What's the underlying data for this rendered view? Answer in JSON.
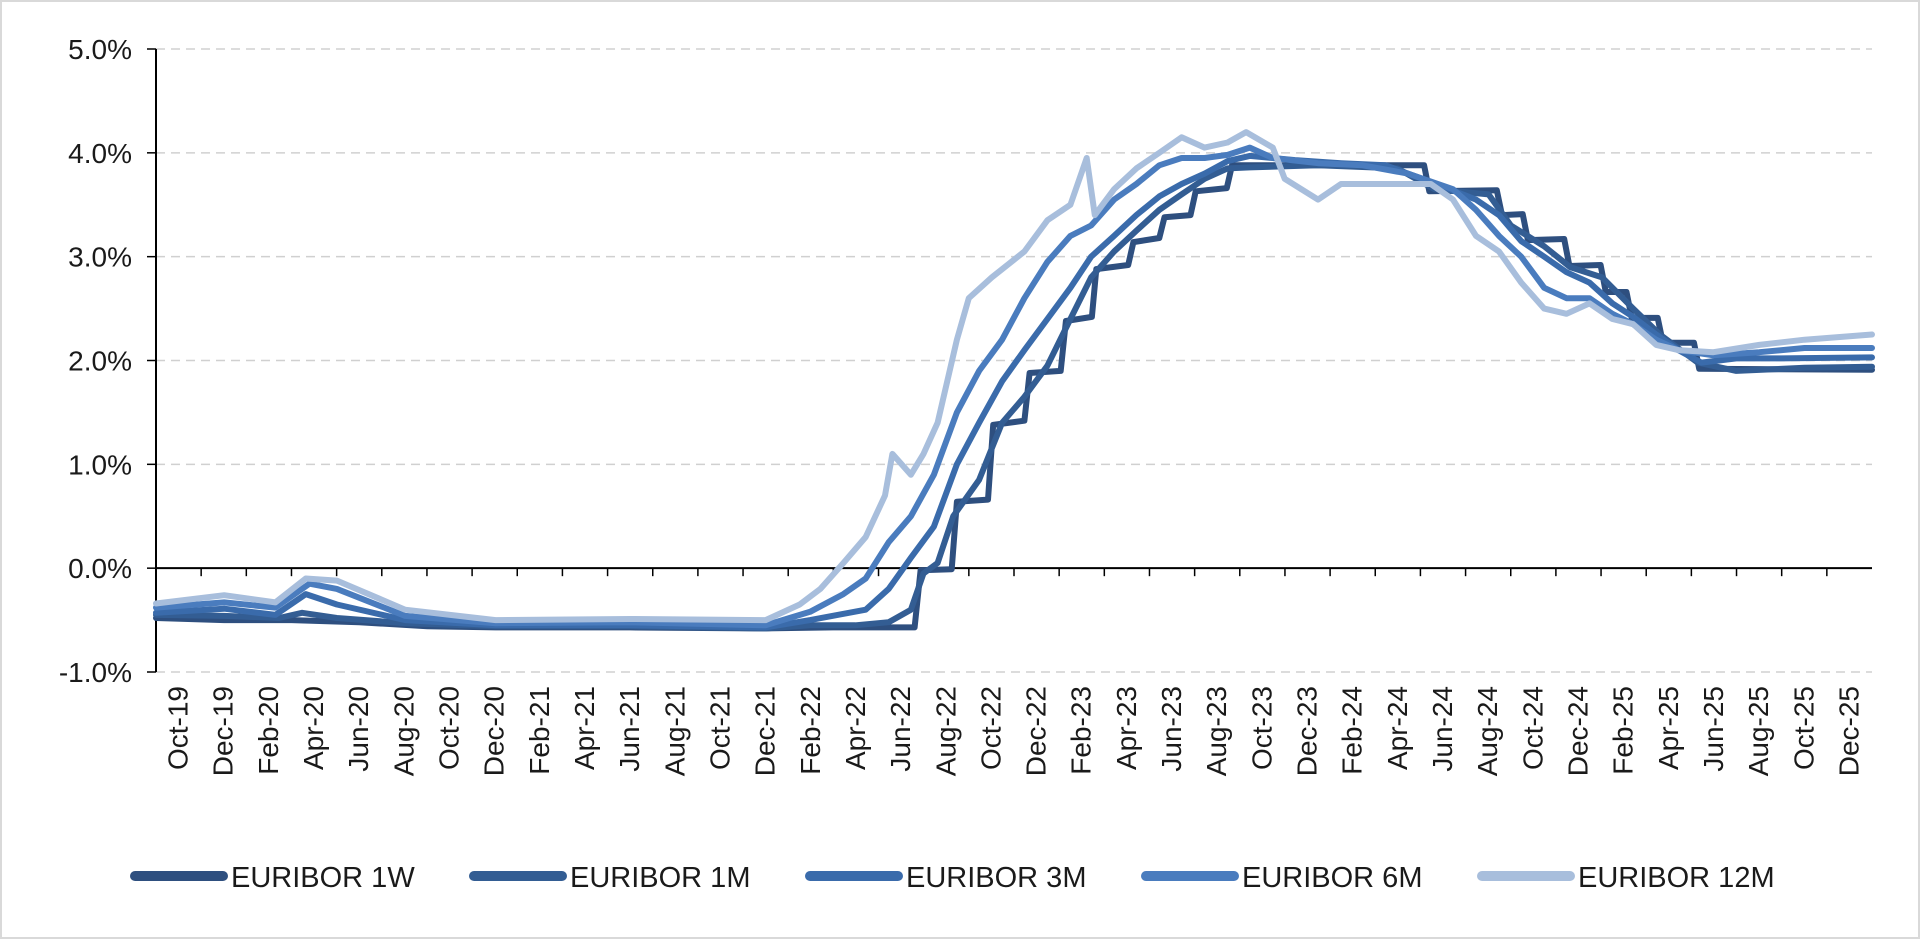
{
  "chart_data": {
    "type": "line",
    "title": "",
    "xlabel": "",
    "ylabel": "",
    "ylim": [
      -1.0,
      5.0
    ],
    "xlim": [
      "2019-10-01",
      "2026-01-31"
    ],
    "y_ticks": [
      "5.0%",
      "4.0%",
      "3.0%",
      "2.0%",
      "1.0%",
      "0.0%",
      "-1.0%"
    ],
    "y_tick_values": [
      5,
      4,
      3,
      2,
      1,
      0,
      -1
    ],
    "x_ticks": [
      "Oct-19",
      "Dec-19",
      "Feb-20",
      "Apr-20",
      "Jun-20",
      "Aug-20",
      "Oct-20",
      "Dec-20",
      "Feb-21",
      "Apr-21",
      "Jun-21",
      "Aug-21",
      "Oct-21",
      "Dec-21",
      "Feb-22",
      "Apr-22",
      "Jun-22",
      "Aug-22",
      "Oct-22",
      "Dec-22",
      "Feb-23",
      "Apr-23",
      "Jun-23",
      "Aug-23",
      "Oct-23",
      "Dec-23",
      "Feb-24",
      "Apr-24",
      "Jun-24",
      "Aug-24",
      "Oct-24",
      "Dec-24",
      "Feb-25",
      "Apr-25",
      "Jun-25",
      "Aug-25",
      "Oct-25",
      "Dec-25"
    ],
    "grid": "horizontal dashed",
    "legend": "bottom",
    "series": [
      {
        "name": "EURIBOR 1W",
        "color": "#2e4f7f",
        "points": [
          [
            "2019-10-01",
            -0.48
          ],
          [
            "2020-01-01",
            -0.5
          ],
          [
            "2020-04-01",
            -0.5
          ],
          [
            "2020-07-01",
            -0.52
          ],
          [
            "2020-10-01",
            -0.56
          ],
          [
            "2021-01-01",
            -0.57
          ],
          [
            "2021-07-01",
            -0.57
          ],
          [
            "2021-12-15",
            -0.58
          ],
          [
            "2022-01-01",
            -0.58
          ],
          [
            "2022-04-01",
            -0.57
          ],
          [
            "2022-07-20",
            -0.57
          ],
          [
            "2022-07-28",
            -0.02
          ],
          [
            "2022-09-08",
            -0.01
          ],
          [
            "2022-09-15",
            0.64
          ],
          [
            "2022-10-27",
            0.66
          ],
          [
            "2022-11-03",
            1.38
          ],
          [
            "2022-12-15",
            1.42
          ],
          [
            "2022-12-22",
            1.88
          ],
          [
            "2023-02-02",
            1.9
          ],
          [
            "2023-02-09",
            2.38
          ],
          [
            "2023-03-16",
            2.42
          ],
          [
            "2023-03-22",
            2.88
          ],
          [
            "2023-05-04",
            2.92
          ],
          [
            "2023-05-11",
            3.14
          ],
          [
            "2023-06-15",
            3.18
          ],
          [
            "2023-06-22",
            3.38
          ],
          [
            "2023-07-27",
            3.4
          ],
          [
            "2023-08-03",
            3.63
          ],
          [
            "2023-09-14",
            3.66
          ],
          [
            "2023-09-21",
            3.88
          ],
          [
            "2024-06-06",
            3.88
          ],
          [
            "2024-06-13",
            3.63
          ],
          [
            "2024-09-12",
            3.64
          ],
          [
            "2024-09-19",
            3.4
          ],
          [
            "2024-10-17",
            3.41
          ],
          [
            "2024-10-24",
            3.16
          ],
          [
            "2024-12-12",
            3.17
          ],
          [
            "2024-12-19",
            2.91
          ],
          [
            "2025-01-30",
            2.92
          ],
          [
            "2025-02-06",
            2.66
          ],
          [
            "2025-03-06",
            2.66
          ],
          [
            "2025-03-13",
            2.41
          ],
          [
            "2025-04-17",
            2.41
          ],
          [
            "2025-04-24",
            2.17
          ],
          [
            "2025-06-05",
            2.17
          ],
          [
            "2025-06-12",
            1.92
          ],
          [
            "2026-01-31",
            1.91
          ]
        ]
      },
      {
        "name": "EURIBOR 1M",
        "color": "#335d93",
        "points": [
          [
            "2019-10-01",
            -0.45
          ],
          [
            "2020-01-01",
            -0.46
          ],
          [
            "2020-03-15",
            -0.48
          ],
          [
            "2020-04-15",
            -0.43
          ],
          [
            "2020-06-01",
            -0.48
          ],
          [
            "2020-09-01",
            -0.53
          ],
          [
            "2021-01-01",
            -0.56
          ],
          [
            "2021-07-01",
            -0.56
          ],
          [
            "2022-01-01",
            -0.58
          ],
          [
            "2022-03-01",
            -0.55
          ],
          [
            "2022-05-01",
            -0.55
          ],
          [
            "2022-06-15",
            -0.52
          ],
          [
            "2022-07-15",
            -0.4
          ],
          [
            "2022-08-01",
            -0.05
          ],
          [
            "2022-08-20",
            0.05
          ],
          [
            "2022-09-10",
            0.5
          ],
          [
            "2022-10-15",
            0.85
          ],
          [
            "2022-11-15",
            1.4
          ],
          [
            "2022-12-15",
            1.65
          ],
          [
            "2023-01-15",
            1.95
          ],
          [
            "2023-02-15",
            2.4
          ],
          [
            "2023-03-15",
            2.8
          ],
          [
            "2023-04-15",
            3.05
          ],
          [
            "2023-05-15",
            3.25
          ],
          [
            "2023-06-15",
            3.45
          ],
          [
            "2023-07-15",
            3.6
          ],
          [
            "2023-08-15",
            3.75
          ],
          [
            "2023-09-15",
            3.85
          ],
          [
            "2023-10-15",
            3.86
          ],
          [
            "2024-01-15",
            3.88
          ],
          [
            "2024-05-01",
            3.85
          ],
          [
            "2024-06-20",
            3.65
          ],
          [
            "2024-09-01",
            3.6
          ],
          [
            "2024-10-01",
            3.3
          ],
          [
            "2024-11-15",
            3.1
          ],
          [
            "2024-12-20",
            2.9
          ],
          [
            "2025-02-01",
            2.8
          ],
          [
            "2025-03-15",
            2.5
          ],
          [
            "2025-04-20",
            2.25
          ],
          [
            "2025-06-10",
            1.98
          ],
          [
            "2025-08-01",
            1.9
          ],
          [
            "2025-11-01",
            1.93
          ],
          [
            "2026-01-31",
            1.94
          ]
        ]
      },
      {
        "name": "EURIBOR 3M",
        "color": "#3a6bab",
        "points": [
          [
            "2019-10-01",
            -0.43
          ],
          [
            "2020-01-01",
            -0.39
          ],
          [
            "2020-03-10",
            -0.45
          ],
          [
            "2020-04-20",
            -0.25
          ],
          [
            "2020-06-01",
            -0.35
          ],
          [
            "2020-09-01",
            -0.5
          ],
          [
            "2021-01-01",
            -0.55
          ],
          [
            "2021-07-01",
            -0.55
          ],
          [
            "2021-12-31",
            -0.57
          ],
          [
            "2022-03-01",
            -0.5
          ],
          [
            "2022-05-15",
            -0.4
          ],
          [
            "2022-06-15",
            -0.2
          ],
          [
            "2022-07-15",
            0.1
          ],
          [
            "2022-08-15",
            0.4
          ],
          [
            "2022-09-15",
            1.0
          ],
          [
            "2022-10-15",
            1.4
          ],
          [
            "2022-11-15",
            1.8
          ],
          [
            "2022-12-15",
            2.1
          ],
          [
            "2023-01-15",
            2.4
          ],
          [
            "2023-02-15",
            2.7
          ],
          [
            "2023-03-15",
            3.0
          ],
          [
            "2023-04-15",
            3.2
          ],
          [
            "2023-05-15",
            3.4
          ],
          [
            "2023-06-15",
            3.58
          ],
          [
            "2023-07-15",
            3.7
          ],
          [
            "2023-08-15",
            3.8
          ],
          [
            "2023-09-15",
            3.92
          ],
          [
            "2023-10-15",
            3.97
          ],
          [
            "2023-12-15",
            3.93
          ],
          [
            "2024-02-15",
            3.9
          ],
          [
            "2024-04-15",
            3.88
          ],
          [
            "2024-06-15",
            3.72
          ],
          [
            "2024-08-15",
            3.55
          ],
          [
            "2024-09-15",
            3.4
          ],
          [
            "2024-10-15",
            3.15
          ],
          [
            "2024-11-15",
            3.0
          ],
          [
            "2024-12-15",
            2.85
          ],
          [
            "2025-01-15",
            2.75
          ],
          [
            "2025-02-15",
            2.55
          ],
          [
            "2025-03-15",
            2.42
          ],
          [
            "2025-04-15",
            2.25
          ],
          [
            "2025-05-15",
            2.1
          ],
          [
            "2025-06-15",
            1.98
          ],
          [
            "2025-08-01",
            2.02
          ],
          [
            "2025-10-01",
            2.02
          ],
          [
            "2026-01-31",
            2.03
          ]
        ]
      },
      {
        "name": "EURIBOR 6M",
        "color": "#4a7cbe",
        "points": [
          [
            "2019-10-01",
            -0.38
          ],
          [
            "2020-01-01",
            -0.33
          ],
          [
            "2020-03-10",
            -0.38
          ],
          [
            "2020-04-25",
            -0.15
          ],
          [
            "2020-06-01",
            -0.2
          ],
          [
            "2020-09-01",
            -0.46
          ],
          [
            "2021-01-01",
            -0.53
          ],
          [
            "2021-07-01",
            -0.52
          ],
          [
            "2021-12-31",
            -0.55
          ],
          [
            "2022-03-01",
            -0.42
          ],
          [
            "2022-04-15",
            -0.25
          ],
          [
            "2022-05-15",
            -0.1
          ],
          [
            "2022-06-15",
            0.25
          ],
          [
            "2022-07-15",
            0.5
          ],
          [
            "2022-08-15",
            0.9
          ],
          [
            "2022-09-15",
            1.5
          ],
          [
            "2022-10-15",
            1.9
          ],
          [
            "2022-11-15",
            2.2
          ],
          [
            "2022-12-15",
            2.6
          ],
          [
            "2023-01-15",
            2.95
          ],
          [
            "2023-02-15",
            3.2
          ],
          [
            "2023-03-15",
            3.3
          ],
          [
            "2023-04-15",
            3.55
          ],
          [
            "2023-05-15",
            3.7
          ],
          [
            "2023-06-15",
            3.88
          ],
          [
            "2023-07-15",
            3.95
          ],
          [
            "2023-08-15",
            3.95
          ],
          [
            "2023-09-15",
            3.98
          ],
          [
            "2023-10-15",
            4.05
          ],
          [
            "2023-11-15",
            3.95
          ],
          [
            "2024-01-15",
            3.9
          ],
          [
            "2024-03-15",
            3.88
          ],
          [
            "2024-05-15",
            3.8
          ],
          [
            "2024-07-15",
            3.65
          ],
          [
            "2024-08-15",
            3.45
          ],
          [
            "2024-09-15",
            3.2
          ],
          [
            "2024-10-15",
            3.0
          ],
          [
            "2024-11-15",
            2.7
          ],
          [
            "2024-12-15",
            2.6
          ],
          [
            "2025-01-15",
            2.6
          ],
          [
            "2025-02-15",
            2.45
          ],
          [
            "2025-03-15",
            2.35
          ],
          [
            "2025-04-15",
            2.2
          ],
          [
            "2025-05-15",
            2.1
          ],
          [
            "2025-07-01",
            2.05
          ],
          [
            "2025-09-01",
            2.08
          ],
          [
            "2025-11-01",
            2.12
          ],
          [
            "2026-01-31",
            2.12
          ]
        ]
      },
      {
        "name": "EURIBOR 12M",
        "color": "#a8bedc",
        "points": [
          [
            "2019-10-01",
            -0.34
          ],
          [
            "2020-01-01",
            -0.26
          ],
          [
            "2020-03-10",
            -0.33
          ],
          [
            "2020-04-20",
            -0.1
          ],
          [
            "2020-06-01",
            -0.12
          ],
          [
            "2020-09-01",
            -0.4
          ],
          [
            "2021-01-01",
            -0.5
          ],
          [
            "2021-07-01",
            -0.49
          ],
          [
            "2021-12-31",
            -0.5
          ],
          [
            "2022-02-15",
            -0.35
          ],
          [
            "2022-03-15",
            -0.2
          ],
          [
            "2022-04-15",
            0.05
          ],
          [
            "2022-05-15",
            0.3
          ],
          [
            "2022-06-10",
            0.7
          ],
          [
            "2022-06-20",
            1.1
          ],
          [
            "2022-07-15",
            0.9
          ],
          [
            "2022-08-01",
            1.1
          ],
          [
            "2022-08-20",
            1.4
          ],
          [
            "2022-09-15",
            2.2
          ],
          [
            "2022-10-01",
            2.6
          ],
          [
            "2022-11-01",
            2.8
          ],
          [
            "2022-12-15",
            3.05
          ],
          [
            "2023-01-15",
            3.35
          ],
          [
            "2023-02-15",
            3.5
          ],
          [
            "2023-03-09",
            3.95
          ],
          [
            "2023-03-20",
            3.4
          ],
          [
            "2023-04-15",
            3.65
          ],
          [
            "2023-05-15",
            3.85
          ],
          [
            "2023-06-15",
            4.0
          ],
          [
            "2023-07-15",
            4.15
          ],
          [
            "2023-08-15",
            4.05
          ],
          [
            "2023-09-15",
            4.1
          ],
          [
            "2023-10-10",
            4.2
          ],
          [
            "2023-11-15",
            4.05
          ],
          [
            "2023-12-01",
            3.75
          ],
          [
            "2024-01-15",
            3.55
          ],
          [
            "2024-02-15",
            3.7
          ],
          [
            "2024-04-15",
            3.7
          ],
          [
            "2024-06-15",
            3.7
          ],
          [
            "2024-07-15",
            3.55
          ],
          [
            "2024-08-15",
            3.2
          ],
          [
            "2024-09-15",
            3.05
          ],
          [
            "2024-10-15",
            2.75
          ],
          [
            "2024-11-15",
            2.5
          ],
          [
            "2024-12-15",
            2.45
          ],
          [
            "2025-01-15",
            2.55
          ],
          [
            "2025-02-15",
            2.4
          ],
          [
            "2025-03-15",
            2.35
          ],
          [
            "2025-04-15",
            2.15
          ],
          [
            "2025-05-15",
            2.1
          ],
          [
            "2025-07-01",
            2.08
          ],
          [
            "2025-09-01",
            2.15
          ],
          [
            "2025-11-01",
            2.2
          ],
          [
            "2026-01-31",
            2.25
          ]
        ]
      }
    ]
  }
}
